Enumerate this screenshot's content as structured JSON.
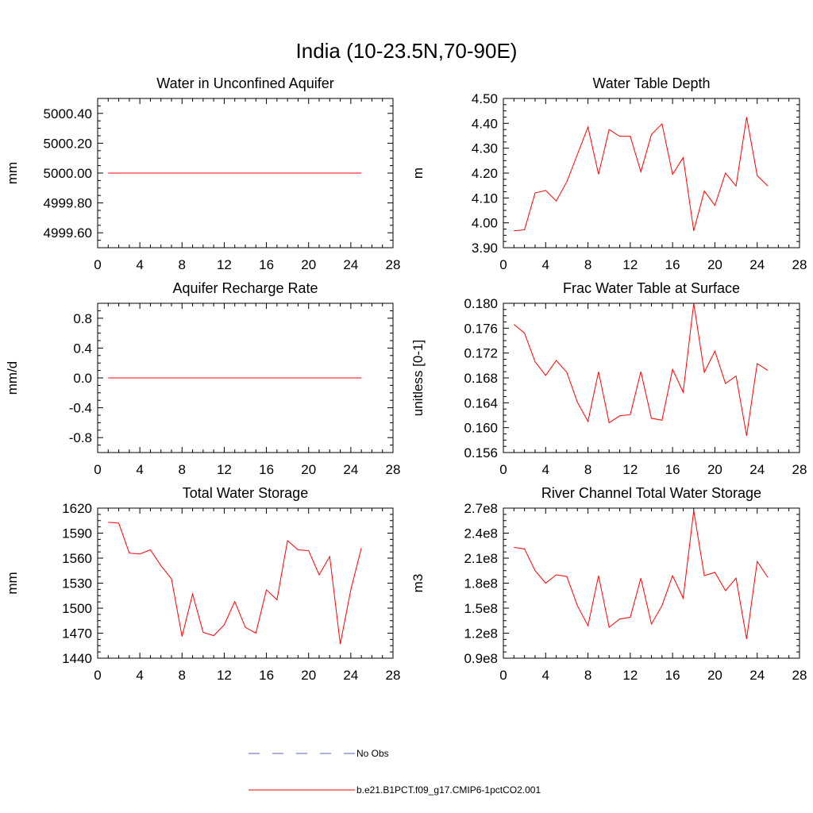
{
  "figure": {
    "title": "India (10-23.5N,70-90E)"
  },
  "colors": {
    "model_line": "#ff0000",
    "obs_line": "#5566bb",
    "axis": "#000000"
  },
  "legend": {
    "items": [
      {
        "label": "No Obs",
        "style": "dashed",
        "color": "#5566bb"
      },
      {
        "label": "b.e21.B1PCT.f09_g17.CMIP6-1pctCO2.001",
        "style": "solid",
        "color": "#ff0000"
      }
    ]
  },
  "chart_data": [
    {
      "type": "line",
      "title": "Water in Unconfined Aquifer",
      "xlabel": "",
      "ylabel": "mm",
      "xlim": [
        0,
        28
      ],
      "ylim": [
        4999.5,
        5000.5
      ],
      "xticks": [
        0,
        4,
        8,
        12,
        16,
        20,
        24,
        28
      ],
      "yticks": [
        4999.6,
        4999.8,
        5000.0,
        5000.2,
        5000.4
      ],
      "ytick_labels": [
        "4999.60",
        "4999.80",
        "5000.00",
        "5000.20",
        "5000.40"
      ],
      "x": [
        1,
        2,
        3,
        4,
        5,
        6,
        7,
        8,
        9,
        10,
        11,
        12,
        13,
        14,
        15,
        16,
        17,
        18,
        19,
        20,
        21,
        22,
        23,
        24,
        25
      ],
      "series": [
        {
          "name": "b.e21.B1PCT.f09_g17.CMIP6-1pctCO2.001",
          "values": [
            5000,
            5000,
            5000,
            5000,
            5000,
            5000,
            5000,
            5000,
            5000,
            5000,
            5000,
            5000,
            5000,
            5000,
            5000,
            5000,
            5000,
            5000,
            5000,
            5000,
            5000,
            5000,
            5000,
            5000,
            5000
          ]
        }
      ]
    },
    {
      "type": "line",
      "title": "Water Table Depth",
      "xlabel": "",
      "ylabel": "m",
      "xlim": [
        0,
        28
      ],
      "ylim": [
        3.9,
        4.5
      ],
      "xticks": [
        0,
        4,
        8,
        12,
        16,
        20,
        24,
        28
      ],
      "yticks": [
        3.9,
        4.0,
        4.1,
        4.2,
        4.3,
        4.4,
        4.5
      ],
      "ytick_labels": [
        "3.90",
        "4.00",
        "4.10",
        "4.20",
        "4.30",
        "4.40",
        "4.50"
      ],
      "x": [
        1,
        2,
        3,
        4,
        5,
        6,
        7,
        8,
        9,
        10,
        11,
        12,
        13,
        14,
        15,
        16,
        17,
        18,
        19,
        20,
        21,
        22,
        23,
        24,
        25
      ],
      "series": [
        {
          "name": "b.e21.B1PCT.f09_g17.CMIP6-1pctCO2.001",
          "values": [
            3.968,
            3.972,
            4.12,
            4.13,
            4.088,
            4.165,
            4.275,
            4.385,
            4.195,
            4.375,
            4.348,
            4.348,
            4.205,
            4.355,
            4.398,
            4.195,
            4.262,
            3.968,
            4.128,
            4.07,
            4.2,
            4.148,
            4.425,
            4.19,
            4.148
          ]
        }
      ]
    },
    {
      "type": "line",
      "title": "Aquifer Recharge Rate",
      "xlabel": "",
      "ylabel": "mm/d",
      "xlim": [
        0,
        28
      ],
      "ylim": [
        -1.0,
        1.0
      ],
      "xticks": [
        0,
        4,
        8,
        12,
        16,
        20,
        24,
        28
      ],
      "yticks": [
        -0.8,
        -0.4,
        0.0,
        0.4,
        0.8
      ],
      "ytick_labels": [
        "-0.8",
        "-0.4",
        "0.0",
        "0.4",
        "0.8"
      ],
      "x": [
        1,
        2,
        3,
        4,
        5,
        6,
        7,
        8,
        9,
        10,
        11,
        12,
        13,
        14,
        15,
        16,
        17,
        18,
        19,
        20,
        21,
        22,
        23,
        24,
        25
      ],
      "series": [
        {
          "name": "b.e21.B1PCT.f09_g17.CMIP6-1pctCO2.001",
          "values": [
            0,
            0,
            0,
            0,
            0,
            0,
            0,
            0,
            0,
            0,
            0,
            0,
            0,
            0,
            0,
            0,
            0,
            0,
            0,
            0,
            0,
            0,
            0,
            0,
            0
          ]
        }
      ]
    },
    {
      "type": "line",
      "title": "Frac Water Table at Surface",
      "xlabel": "",
      "ylabel": "unitless [0-1]",
      "xlim": [
        0,
        28
      ],
      "ylim": [
        0.156,
        0.18
      ],
      "xticks": [
        0,
        4,
        8,
        12,
        16,
        20,
        24,
        28
      ],
      "yticks": [
        0.156,
        0.16,
        0.164,
        0.168,
        0.172,
        0.176,
        0.18
      ],
      "ytick_labels": [
        "0.156",
        "0.160",
        "0.164",
        "0.168",
        "0.172",
        "0.176",
        "0.180"
      ],
      "x": [
        1,
        2,
        3,
        4,
        5,
        6,
        7,
        8,
        9,
        10,
        11,
        12,
        13,
        14,
        15,
        16,
        17,
        18,
        19,
        20,
        21,
        22,
        23,
        24,
        25
      ],
      "series": [
        {
          "name": "b.e21.B1PCT.f09_g17.CMIP6-1pctCO2.001",
          "values": [
            0.1766,
            0.1752,
            0.1706,
            0.1684,
            0.1708,
            0.1689,
            0.1641,
            0.161,
            0.169,
            0.1608,
            0.1619,
            0.1621,
            0.169,
            0.1615,
            0.1612,
            0.1694,
            0.1657,
            0.18,
            0.1689,
            0.1723,
            0.1671,
            0.1683,
            0.1587,
            0.1703,
            0.1692
          ]
        }
      ]
    },
    {
      "type": "line",
      "title": "Total Water Storage",
      "xlabel": "",
      "ylabel": "mm",
      "xlim": [
        0,
        28
      ],
      "ylim": [
        1440,
        1620
      ],
      "xticks": [
        0,
        4,
        8,
        12,
        16,
        20,
        24,
        28
      ],
      "yticks": [
        1440,
        1470,
        1500,
        1530,
        1560,
        1590,
        1620
      ],
      "ytick_labels": [
        "1440",
        "1470",
        "1500",
        "1530",
        "1560",
        "1590",
        "1620"
      ],
      "x": [
        1,
        2,
        3,
        4,
        5,
        6,
        7,
        8,
        9,
        10,
        11,
        12,
        13,
        14,
        15,
        16,
        17,
        18,
        19,
        20,
        21,
        22,
        23,
        24,
        25
      ],
      "series": [
        {
          "name": "b.e21.B1PCT.f09_g17.CMIP6-1pctCO2.001",
          "values": [
            1603,
            1602,
            1566,
            1565,
            1570,
            1551,
            1535,
            1466,
            1517,
            1471,
            1467,
            1480,
            1508,
            1477,
            1470,
            1522,
            1510,
            1581,
            1570,
            1569,
            1540,
            1562,
            1457,
            1522,
            1572
          ]
        }
      ]
    },
    {
      "type": "line",
      "title": "River Channel Total Water Storage",
      "xlabel": "",
      "ylabel": "m3",
      "xlim": [
        0,
        28
      ],
      "ylim": [
        90000000,
        270000000
      ],
      "xticks": [
        0,
        4,
        8,
        12,
        16,
        20,
        24,
        28
      ],
      "yticks": [
        90000000,
        120000000,
        150000000,
        180000000,
        210000000,
        240000000,
        270000000
      ],
      "ytick_labels": [
        "0.9e8",
        "1.2e8",
        "1.5e8",
        "1.8e8",
        "2.1e8",
        "2.4e8",
        "2.7e8"
      ],
      "x": [
        1,
        2,
        3,
        4,
        5,
        6,
        7,
        8,
        9,
        10,
        11,
        12,
        13,
        14,
        15,
        16,
        17,
        18,
        19,
        20,
        21,
        22,
        23,
        24,
        25
      ],
      "series": [
        {
          "name": "b.e21.B1PCT.f09_g17.CMIP6-1pctCO2.001",
          "values": [
            223000000,
            221000000,
            195000000,
            180000000,
            190000000,
            188000000,
            153000000,
            129000000,
            189000000,
            127000000,
            137000000,
            139000000,
            186000000,
            131000000,
            153000000,
            189000000,
            162000000,
            267000000,
            189000000,
            193000000,
            171000000,
            186000000,
            113000000,
            206000000,
            187000000
          ]
        }
      ]
    }
  ]
}
